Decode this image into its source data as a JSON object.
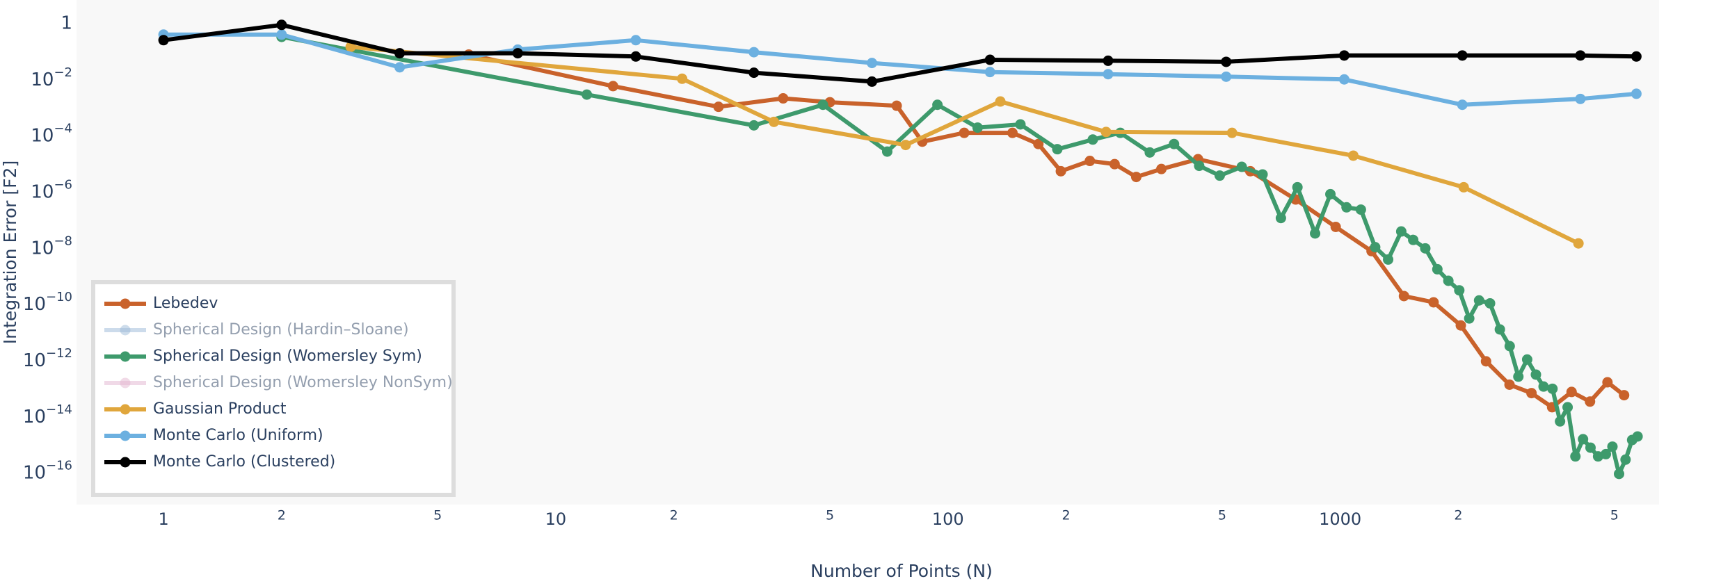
{
  "chart_data": {
    "type": "line",
    "x_label": "Number of Points (N)",
    "y_label": "Integration Error [F2]",
    "log_x": true,
    "log_y": true,
    "grid": false,
    "legend_position": "bottom-left",
    "xlim": [
      0.6,
      6500
    ],
    "ylim": [
      7.5e-18,
      7
    ],
    "xticks": [
      1,
      2,
      5,
      10,
      {
        "value": 20,
        "label": "2"
      },
      {
        "value": 50,
        "label": "5"
      },
      100,
      {
        "value": 200,
        "label": "2"
      },
      {
        "value": 500,
        "label": "5"
      },
      1000,
      {
        "value": 2000,
        "label": "2"
      },
      {
        "value": 5000,
        "label": "5"
      }
    ],
    "yticks": [
      1,
      {
        "value": 0.01,
        "label": "10",
        "exponent": "−2"
      },
      {
        "value": 0.0001,
        "label": "10",
        "exponent": "−4"
      },
      {
        "value": 1e-06,
        "label": "10",
        "exponent": "−6"
      },
      {
        "value": 1e-08,
        "label": "10",
        "exponent": "−8"
      },
      {
        "value": 1e-10,
        "label": "10",
        "exponent": "−10"
      },
      {
        "value": 1e-12,
        "label": "10",
        "exponent": "−12"
      },
      {
        "value": 1e-14,
        "label": "10",
        "exponent": "−14"
      },
      {
        "value": 1e-16,
        "label": "10",
        "exponent": "−16"
      }
    ],
    "series": [
      {
        "name": "Lebedev",
        "color": "#c9622b",
        "visible": true,
        "x": [
          6,
          14,
          26,
          38,
          50,
          74,
          86,
          110,
          146,
          170,
          194,
          230,
          266,
          302,
          350,
          434,
          590,
          770,
          974,
          1202,
          1454,
          1730,
          2030,
          2354,
          2702,
          3074,
          3470,
          3890,
          4334,
          4802,
          5294
        ],
        "values": [
          0.08,
          0.006,
          0.0011,
          0.0022,
          0.0016,
          0.0012,
          6.3e-05,
          0.00013,
          0.00013,
          5.2e-05,
          5.6e-06,
          1.3e-05,
          1e-05,
          3.5e-06,
          6.7e-06,
          1.5e-05,
          5.6e-06,
          5.5e-07,
          5.8e-08,
          8e-09,
          2e-10,
          1.2e-10,
          1.8e-11,
          9.5e-13,
          1.4e-13,
          7e-14,
          2.2e-14,
          7.7e-14,
          3.5e-14,
          1.7e-13,
          5.9e-14
        ]
      },
      {
        "name": "Spherical Design (Hardin–Sloane)",
        "color": "#9bb9d8",
        "visible": false,
        "x": [],
        "values": []
      },
      {
        "name": "Spherical Design (Womersley Sym)",
        "color": "#3e9a6c",
        "visible": true,
        "x": [
          2,
          12,
          32,
          48,
          70,
          94,
          119,
          153,
          190,
          234,
          275,
          327,
          377,
          437,
          493,
          561,
          634,
          706,
          778,
          863,
          944,
          1038,
          1129,
          1228,
          1325,
          1431,
          1535,
          1648,
          1769,
          1887,
          2012,
          2133,
          2260,
          2410,
          2553,
          2705,
          2846,
          2997,
          3155,
          3300,
          3477,
          3635,
          3800,
          3978,
          4160,
          4347,
          4545,
          4757,
          4944,
          5140,
          5340,
          5550,
          5730
        ],
        "values": [
          0.34,
          0.003,
          0.00024,
          0.0013,
          2.8e-05,
          0.0013,
          0.0002,
          0.00026,
          3.4e-05,
          7.5e-05,
          0.00013,
          2.6e-05,
          5.2e-05,
          8.7e-06,
          3.9e-06,
          8e-06,
          4.3e-06,
          1.2e-07,
          1.5e-06,
          3.4e-08,
          8.5e-07,
          2.9e-07,
          2.4e-07,
          1.1e-08,
          4e-09,
          4e-08,
          2e-08,
          1e-08,
          1.8e-09,
          7e-10,
          3.2e-10,
          3.2e-11,
          1.4e-10,
          1.1e-10,
          1.3e-11,
          3.3e-12,
          2.7e-13,
          1.1e-12,
          3.2e-13,
          1.2e-13,
          1e-13,
          6.9e-15,
          2.2e-14,
          3.9e-16,
          1.6e-15,
          8e-16,
          3.9e-16,
          4.7e-16,
          8.7e-16,
          9.3e-17,
          3e-16,
          1.5e-15,
          2e-15
        ]
      },
      {
        "name": "Spherical Design (Womersley NonSym)",
        "color": "#e3b5d0",
        "visible": false,
        "x": [],
        "values": []
      },
      {
        "name": "Gaussian Product",
        "color": "#e0a63c",
        "visible": true,
        "x": [
          3,
          21,
          36,
          78,
          136,
          253,
          530,
          1080,
          2065,
          4050
        ],
        "values": [
          0.15,
          0.011,
          0.00032,
          4.8e-05,
          0.0017,
          0.00014,
          0.00013,
          2e-05,
          1.5e-06,
          1.5e-08
        ]
      },
      {
        "name": "Monte Carlo (Uniform)",
        "color": "#6cb0e0",
        "visible": true,
        "x": [
          1,
          2,
          4,
          8,
          16,
          32,
          64,
          128,
          256,
          512,
          1024,
          2048,
          4096,
          5690
        ],
        "values": [
          0.41,
          0.41,
          0.028,
          0.12,
          0.26,
          0.097,
          0.04,
          0.019,
          0.016,
          0.013,
          0.0104,
          0.0013,
          0.0021,
          0.0032
        ]
      },
      {
        "name": "Monte Carlo (Clustered)",
        "color": "#000000",
        "visible": true,
        "x": [
          1,
          2,
          4,
          8,
          16,
          32,
          64,
          128,
          256,
          512,
          1024,
          2048,
          4096,
          5690
        ],
        "values": [
          0.26,
          0.91,
          0.089,
          0.089,
          0.068,
          0.018,
          0.0087,
          0.052,
          0.048,
          0.044,
          0.074,
          0.074,
          0.074,
          0.068
        ]
      }
    ]
  }
}
